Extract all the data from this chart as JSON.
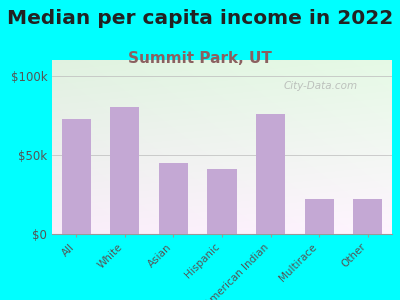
{
  "title": "Median per capita income in 2022",
  "subtitle": "Summit Park, UT",
  "categories": [
    "All",
    "White",
    "Asian",
    "Hispanic",
    "American Indian",
    "Multirace",
    "Other"
  ],
  "values": [
    73000,
    80000,
    45000,
    41000,
    76000,
    22000,
    22000
  ],
  "bar_color": "#c4a8d4",
  "background_outer": "#00FFFF",
  "yticks": [
    0,
    50000,
    100000
  ],
  "ytick_labels": [
    "$0",
    "$50k",
    "$100k"
  ],
  "ylim": [
    0,
    110000
  ],
  "title_fontsize": 14.5,
  "subtitle_fontsize": 11,
  "subtitle_color": "#8B6060",
  "watermark": "City-Data.com",
  "tick_color": "#555555"
}
